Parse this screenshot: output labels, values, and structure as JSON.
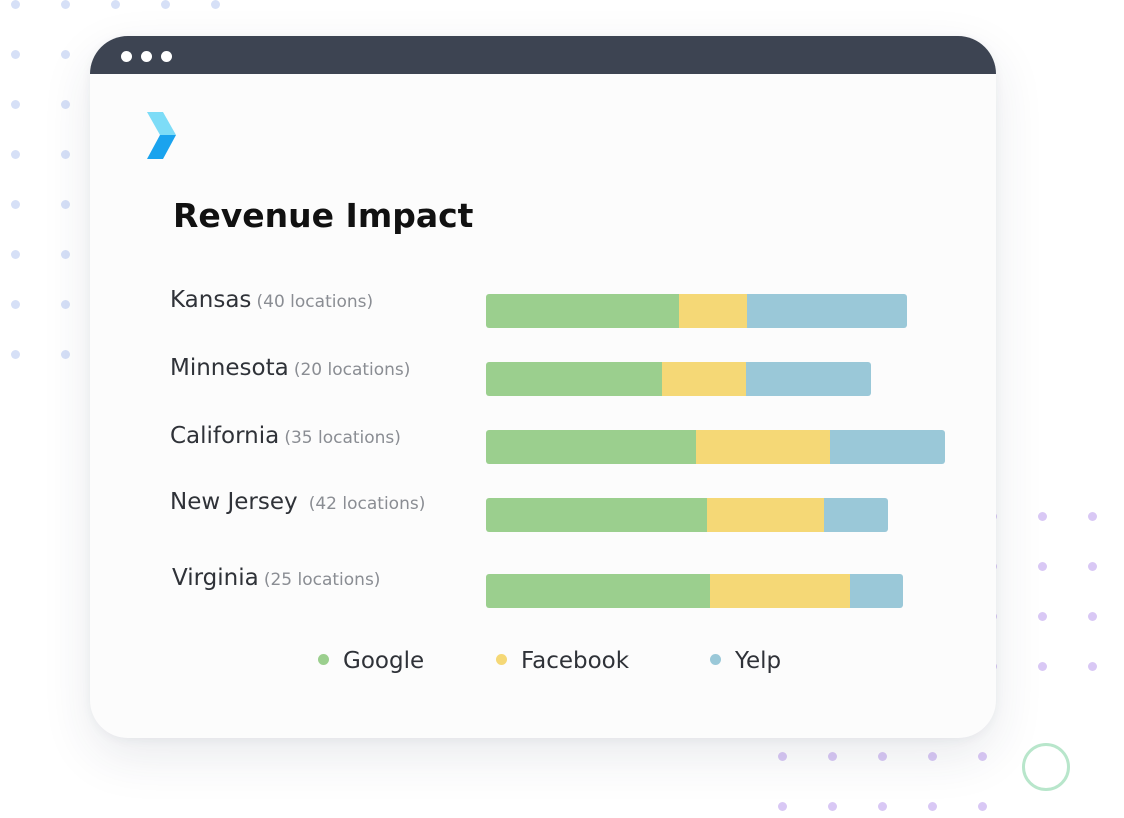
{
  "colors": {
    "google": "#9bcf8e",
    "facebook": "#f5d876",
    "yelp": "#9ac8d8",
    "titlebar": "#3d4452",
    "logo_top": "#7ddcf7",
    "logo_bottom": "#1aa3ee"
  },
  "icons": {
    "logo": "chevron-logo-icon"
  },
  "chart_data": {
    "type": "bar",
    "orientation": "horizontal",
    "stacked": true,
    "title": "Revenue Impact",
    "categories": [
      "Kansas",
      "Minnesota",
      "California",
      "New Jersey",
      "Virginia"
    ],
    "category_notes": [
      "(40 locations)",
      "(20 locations)",
      "(35 locations)",
      "(42 locations)",
      "(25 locations)"
    ],
    "series": [
      {
        "name": "Google",
        "values": [
          193,
          176,
          210,
          221,
          224
        ]
      },
      {
        "name": "Facebook",
        "values": [
          68,
          84,
          134,
          117,
          140
        ]
      },
      {
        "name": "Yelp",
        "values": [
          160,
          125,
          115,
          64,
          53
        ]
      }
    ],
    "xlim": [
      0,
      460
    ],
    "axes_visible": false,
    "grid": false,
    "legend_position": "bottom"
  }
}
